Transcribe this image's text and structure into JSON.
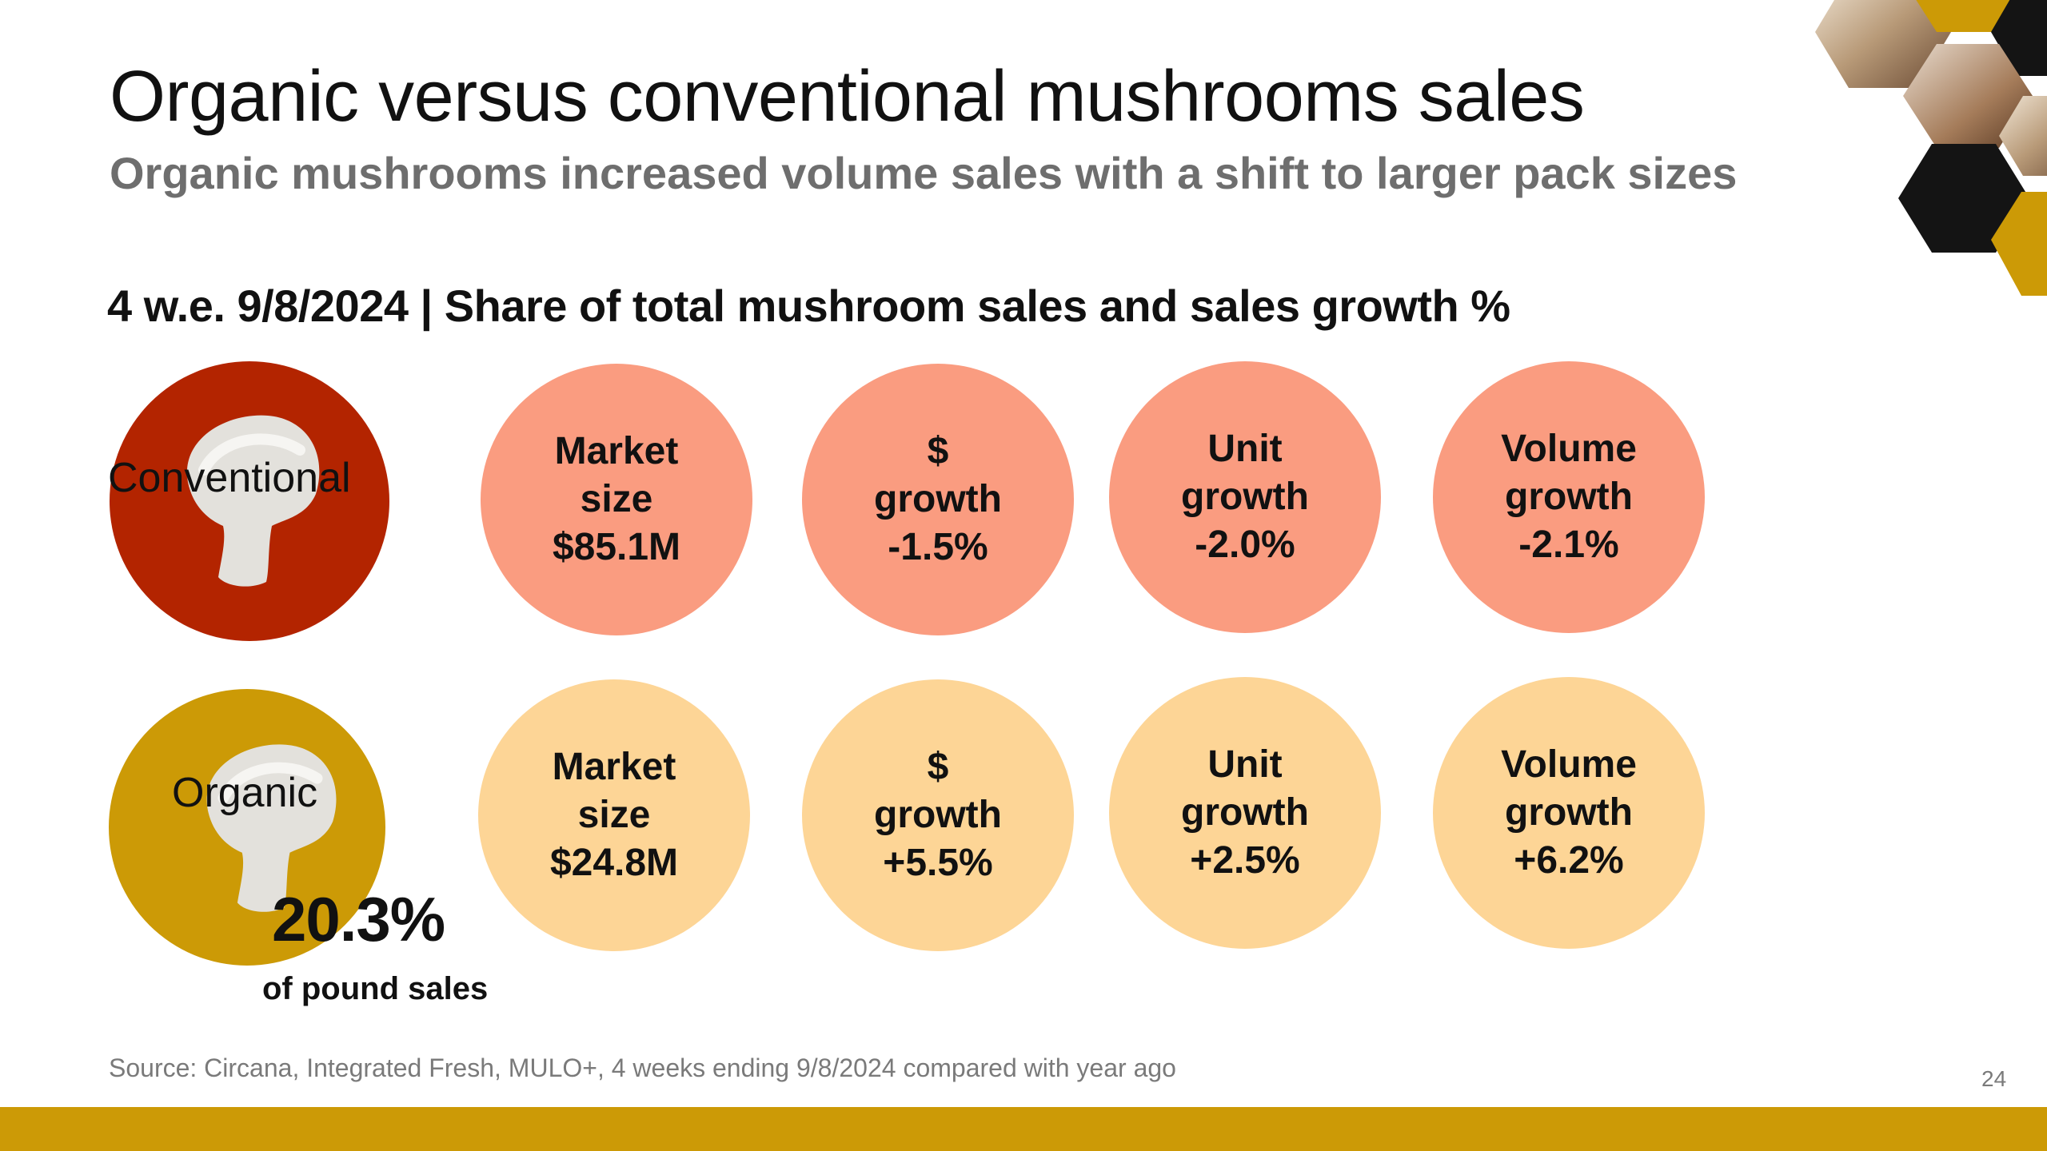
{
  "slide": {
    "title": "Organic versus conventional mushrooms sales",
    "subtitle": "Organic mushrooms increased volume sales with a shift to larger pack sizes",
    "section_heading": "4 w.e. 9/8/2024 | Share of total mushroom sales and sales growth %",
    "page_number": "24",
    "source": "Source: Circana, Integrated Fresh, MULO+, 4 weeks ending 9/8/2024 compared with year ago"
  },
  "conventional": {
    "label": "Conventional",
    "color": "#b32400",
    "metrics": [
      {
        "label": "Market\nsize\n$85.1M"
      },
      {
        "label": "$\ngrowth\n-1.5%"
      },
      {
        "label": "Unit\ngrowth\n-2.0%"
      },
      {
        "label": "Volume\ngrowth\n-2.1%"
      }
    ]
  },
  "organic": {
    "label": "Organic",
    "color": "#cc9a06",
    "share_value": "20.3%",
    "share_caption": "of pound sales",
    "metrics": [
      {
        "label": "Market\nsize\n$24.8M"
      },
      {
        "label": "$\ngrowth\n+5.5%"
      },
      {
        "label": "Unit\ngrowth\n+2.5%"
      },
      {
        "label": "Volume\ngrowth\n+6.2%"
      }
    ]
  },
  "colors": {
    "accent_gold": "#cc9a06",
    "conventional_metric": "#fa9c80",
    "organic_metric": "#fdd596",
    "hexagon_dark": "#141414"
  }
}
